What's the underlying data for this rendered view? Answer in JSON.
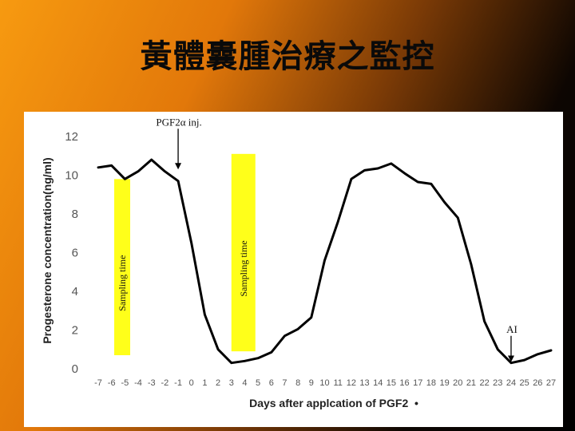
{
  "slide": {
    "title": "黃體囊腫治療之監控"
  },
  "chart_data": {
    "type": "line",
    "title": "",
    "xlabel": "Days after applcation of PGF2  •",
    "ylabel": "Progesterone concentration(ng/ml)",
    "x": [
      -7,
      -6,
      -5,
      -4,
      -3,
      -2,
      -1,
      0,
      1,
      2,
      3,
      4,
      5,
      6,
      7,
      8,
      9,
      10,
      11,
      12,
      13,
      14,
      15,
      16,
      17,
      18,
      19,
      20,
      21,
      22,
      23,
      24,
      25,
      26,
      27
    ],
    "xticks": [
      "-7",
      "-6",
      "-5",
      "-4",
      "-3",
      "-2",
      "-1",
      "0",
      "1",
      "2",
      "3",
      "4",
      "5",
      "6",
      "7",
      "8",
      "9",
      "10",
      "11",
      "12",
      "13",
      "14",
      "15",
      "16",
      "17",
      "18",
      "19",
      "20",
      "21",
      "22",
      "23",
      "24",
      "25",
      "26",
      "27"
    ],
    "series": [
      {
        "values": [
          10.4,
          10.5,
          9.8,
          10.2,
          10.8,
          10.2,
          9.7,
          6.5,
          2.8,
          1.0,
          0.3,
          0.4,
          0.55,
          0.85,
          1.7,
          2.05,
          2.65,
          5.6,
          7.6,
          9.8,
          10.25,
          10.35,
          10.6,
          10.1,
          9.65,
          9.55,
          8.6,
          7.8,
          5.4,
          2.45,
          1.0,
          0.3,
          0.45,
          0.75,
          0.95
        ],
        "color": "#000000"
      }
    ],
    "ylim": [
      0,
      12
    ],
    "yticks": [
      0,
      2,
      4,
      6,
      8,
      10,
      12
    ],
    "grid": false,
    "legend": "none",
    "bands": [
      {
        "label": "Sampling time",
        "x_from": -5.8,
        "x_to": -4.6,
        "y_from": 0.7,
        "y_to": 9.8,
        "color": "#ffff1a"
      },
      {
        "label": "Sampling time",
        "x_from": 3.0,
        "x_to": 4.8,
        "y_from": 0.9,
        "y_to": 11.1,
        "color": "#ffff1a"
      }
    ],
    "annotations": [
      {
        "label": "PGF2α inj.",
        "x": -1.0,
        "y_from": 12.4,
        "y_to": 10.3
      },
      {
        "label": "AI",
        "x": 24.0,
        "y_from": 1.7,
        "y_to": 0.35
      }
    ]
  }
}
